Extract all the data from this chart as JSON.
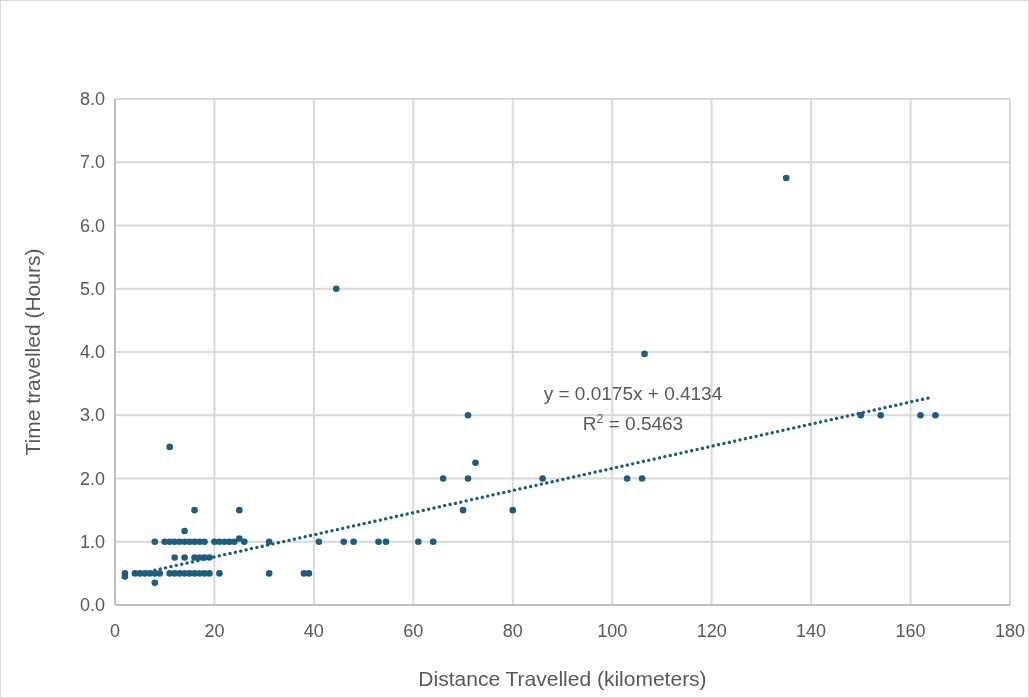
{
  "chart_data": {
    "type": "scatter",
    "xlabel": "Distance Travelled (kilometers)",
    "ylabel": "Time travelled (Hours)",
    "xlim": [
      0,
      180
    ],
    "xticks": [
      0,
      20,
      40,
      60,
      80,
      100,
      120,
      140,
      160,
      180
    ],
    "ylim": [
      0,
      8
    ],
    "yticks": [
      {
        "value": 0,
        "label": "0.0"
      },
      {
        "value": 1,
        "label": "1.0"
      },
      {
        "value": 2,
        "label": "2.0"
      },
      {
        "value": 3,
        "label": "3.0"
      },
      {
        "value": 4,
        "label": "4.0"
      },
      {
        "value": 5,
        "label": "5.0"
      },
      {
        "value": 6,
        "label": "6.0"
      },
      {
        "value": 7,
        "label": "7.0"
      },
      {
        "value": 8,
        "label": "8.0"
      }
    ],
    "grid": true,
    "annotations": [
      "y = 0.0175x + 0.4134",
      "R$^{2}$ = 0.5463"
    ],
    "series": [
      {
        "color": "#1b5e7e",
        "marker": "circle",
        "x": [
          2,
          2,
          4,
          5,
          6,
          7,
          8,
          8,
          8,
          9,
          10,
          11,
          11,
          11,
          12,
          12,
          12,
          13,
          13,
          14,
          14,
          14,
          14,
          15,
          15,
          16,
          16,
          16,
          16,
          17,
          17,
          17,
          18,
          18,
          18,
          19,
          19,
          20,
          21,
          21,
          22,
          23,
          24,
          25,
          25,
          26,
          31,
          31,
          38,
          39,
          41,
          44.5,
          46,
          48,
          53,
          54.5,
          61,
          64,
          66,
          70,
          71,
          71,
          72.5,
          80,
          86,
          103,
          106,
          106.5,
          135,
          150,
          154,
          162,
          165
        ],
        "values": [
          0.5,
          0.45,
          0.5,
          0.5,
          0.5,
          0.5,
          0.5,
          1,
          0.35,
          0.5,
          1,
          1,
          2.5,
          0.5,
          1,
          0.5,
          0.75,
          1,
          0.5,
          1.17,
          1,
          0.75,
          0.5,
          1,
          0.5,
          1,
          1.5,
          0.5,
          0.75,
          1,
          0.5,
          0.75,
          1,
          0.5,
          0.75,
          0.75,
          0.5,
          1,
          1,
          0.5,
          1,
          1,
          1,
          1.5,
          1.05,
          1,
          1,
          0.5,
          0.5,
          0.5,
          1,
          5,
          1,
          1,
          1,
          1,
          1,
          1,
          2,
          1.5,
          2,
          3,
          2.25,
          1.5,
          2,
          2,
          2,
          3.97,
          6.75,
          3,
          3,
          3,
          3
        ]
      },
      {
        "type": "line",
        "color": "#1b5e7e",
        "line_style": "dotted",
        "marker": "none",
        "x": [
          8,
          164
        ],
        "values": [
          0.55,
          3.28
        ]
      }
    ]
  }
}
